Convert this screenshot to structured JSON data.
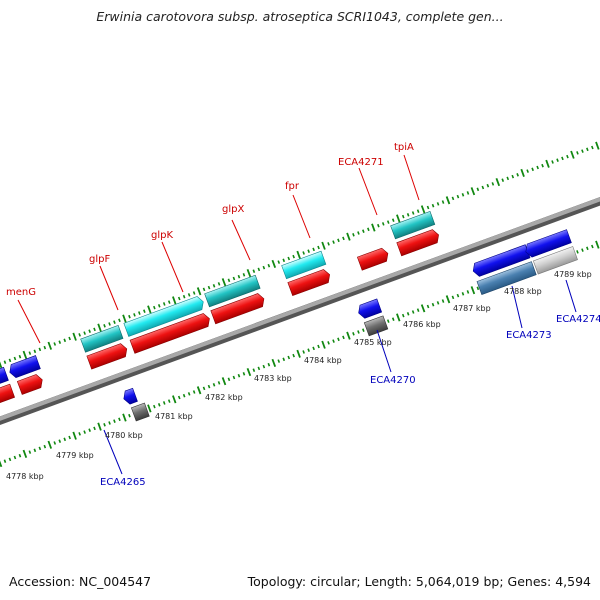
{
  "title": "Erwinia carotovora subsp. atroseptica SCRI1043, complete gen...",
  "footer": {
    "accession": "Accession: NC_004547",
    "summary": "Topology: circular; Length: 5,064,019 bp; Genes: 4,594"
  },
  "gene_labels_top": [
    "menG",
    "glpF",
    "glpK",
    "glpX",
    "fpr",
    "ECA4271",
    "tpiA"
  ],
  "gene_labels_bottom": [
    "ECA4265",
    "ECA4270",
    "ECA4273",
    "ECA4274"
  ],
  "kbp_labels": [
    "4778 kbp",
    "4779 kbp",
    "4780 kbp",
    "4781 kbp",
    "4782 kbp",
    "4783 kbp",
    "4784 kbp",
    "4785 kbp",
    "4786 kbp",
    "4787 kbp",
    "4788 kbp",
    "4789 kbp"
  ],
  "colors": {
    "forward_gene": "#ee1111",
    "forward_cds": "#22c4c4",
    "reverse_gene": "#1111ee",
    "reverse_cds": "#707070",
    "tick": "#118811",
    "backbone": "#8a8a8a"
  }
}
